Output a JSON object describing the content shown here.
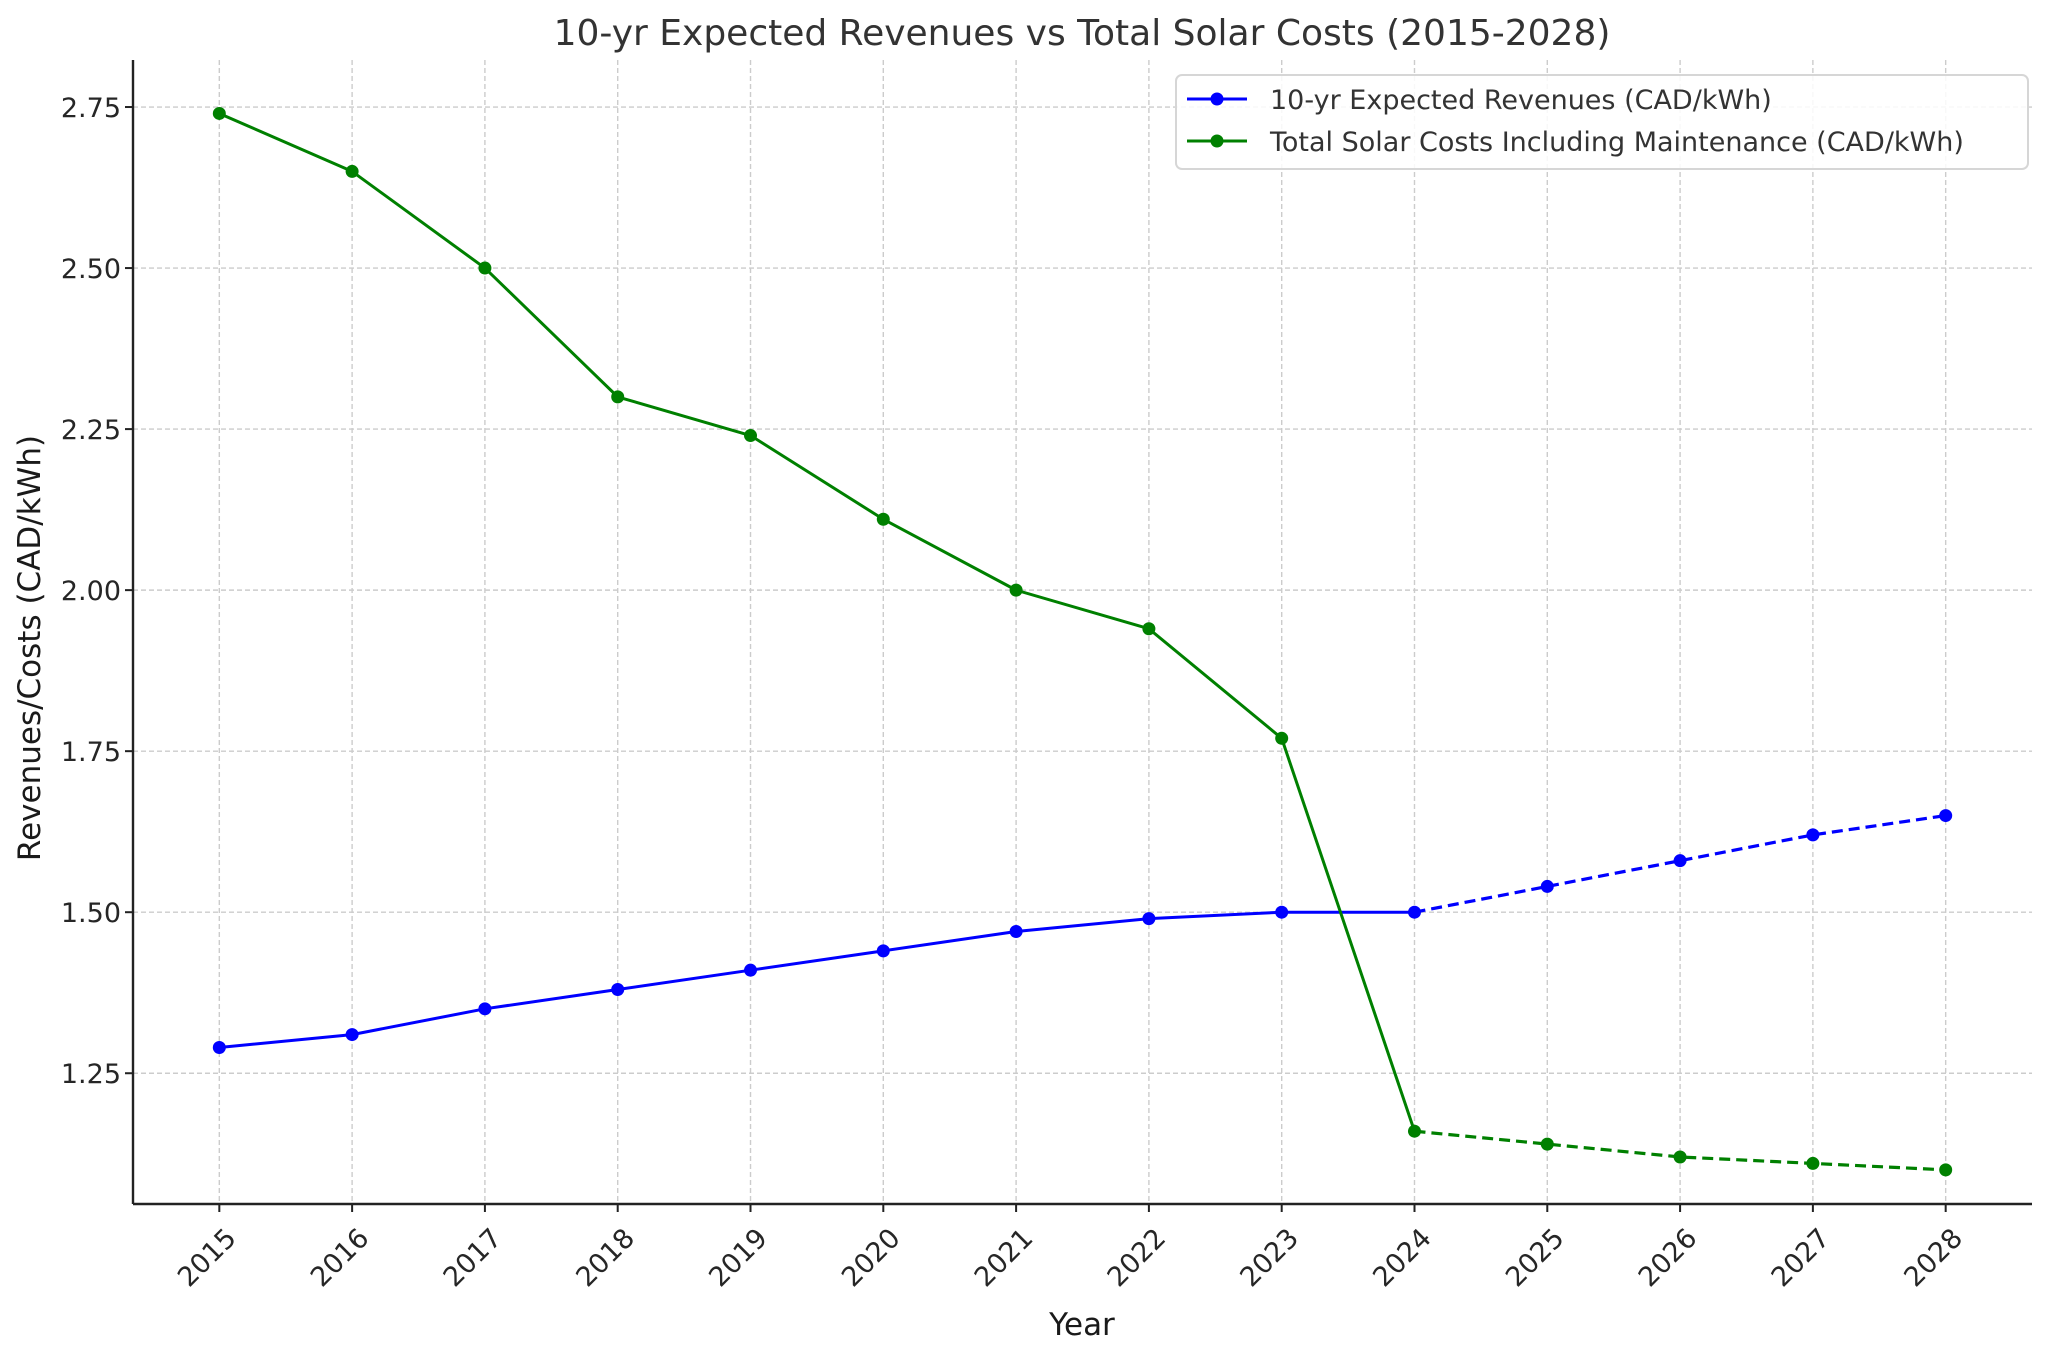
{
  "chart_data": {
    "type": "line",
    "title": "10-yr Expected Revenues vs Total Solar Costs (2015-2028)",
    "xlabel": "Year",
    "ylabel": "Revenues/Costs (CAD/kWh)",
    "x": [
      2015,
      2016,
      2017,
      2018,
      2019,
      2020,
      2021,
      2022,
      2023,
      2024,
      2025,
      2026,
      2027,
      2028
    ],
    "x_tick_labels": [
      "2015",
      "2016",
      "2017",
      "2018",
      "2019",
      "2020",
      "2021",
      "2022",
      "2023",
      "2024",
      "2025",
      "2026",
      "2027",
      "2028"
    ],
    "x_tick_rotation_deg": 45,
    "y_ticks": [
      1.25,
      1.5,
      1.75,
      2.0,
      2.25,
      2.5,
      2.75
    ],
    "y_tick_labels": [
      "1.25",
      "1.50",
      "1.75",
      "2.00",
      "2.25",
      "2.50",
      "2.75"
    ],
    "ylim": [
      1.047,
      2.823
    ],
    "xlim": [
      2014.35,
      2028.65
    ],
    "grid": true,
    "legend_position": "top-right",
    "series": [
      {
        "name": "10-yr Expected Revenues (CAD/kWh)",
        "color": "#0000ff",
        "marker": "circle",
        "values": [
          1.29,
          1.31,
          1.35,
          1.38,
          1.41,
          1.44,
          1.47,
          1.49,
          1.5,
          1.5,
          1.54,
          1.58,
          1.62,
          1.65
        ],
        "solid_until_year": 2024,
        "dashed_from_year": 2024
      },
      {
        "name": "Total Solar Costs Including Maintenance (CAD/kWh)",
        "color": "#008000",
        "marker": "circle",
        "values": [
          2.74,
          2.65,
          2.5,
          2.3,
          2.24,
          2.11,
          2.0,
          1.94,
          1.77,
          1.16,
          1.14,
          1.12,
          1.11,
          1.1
        ],
        "solid_until_year": 2024,
        "dashed_from_year": 2024
      }
    ]
  }
}
